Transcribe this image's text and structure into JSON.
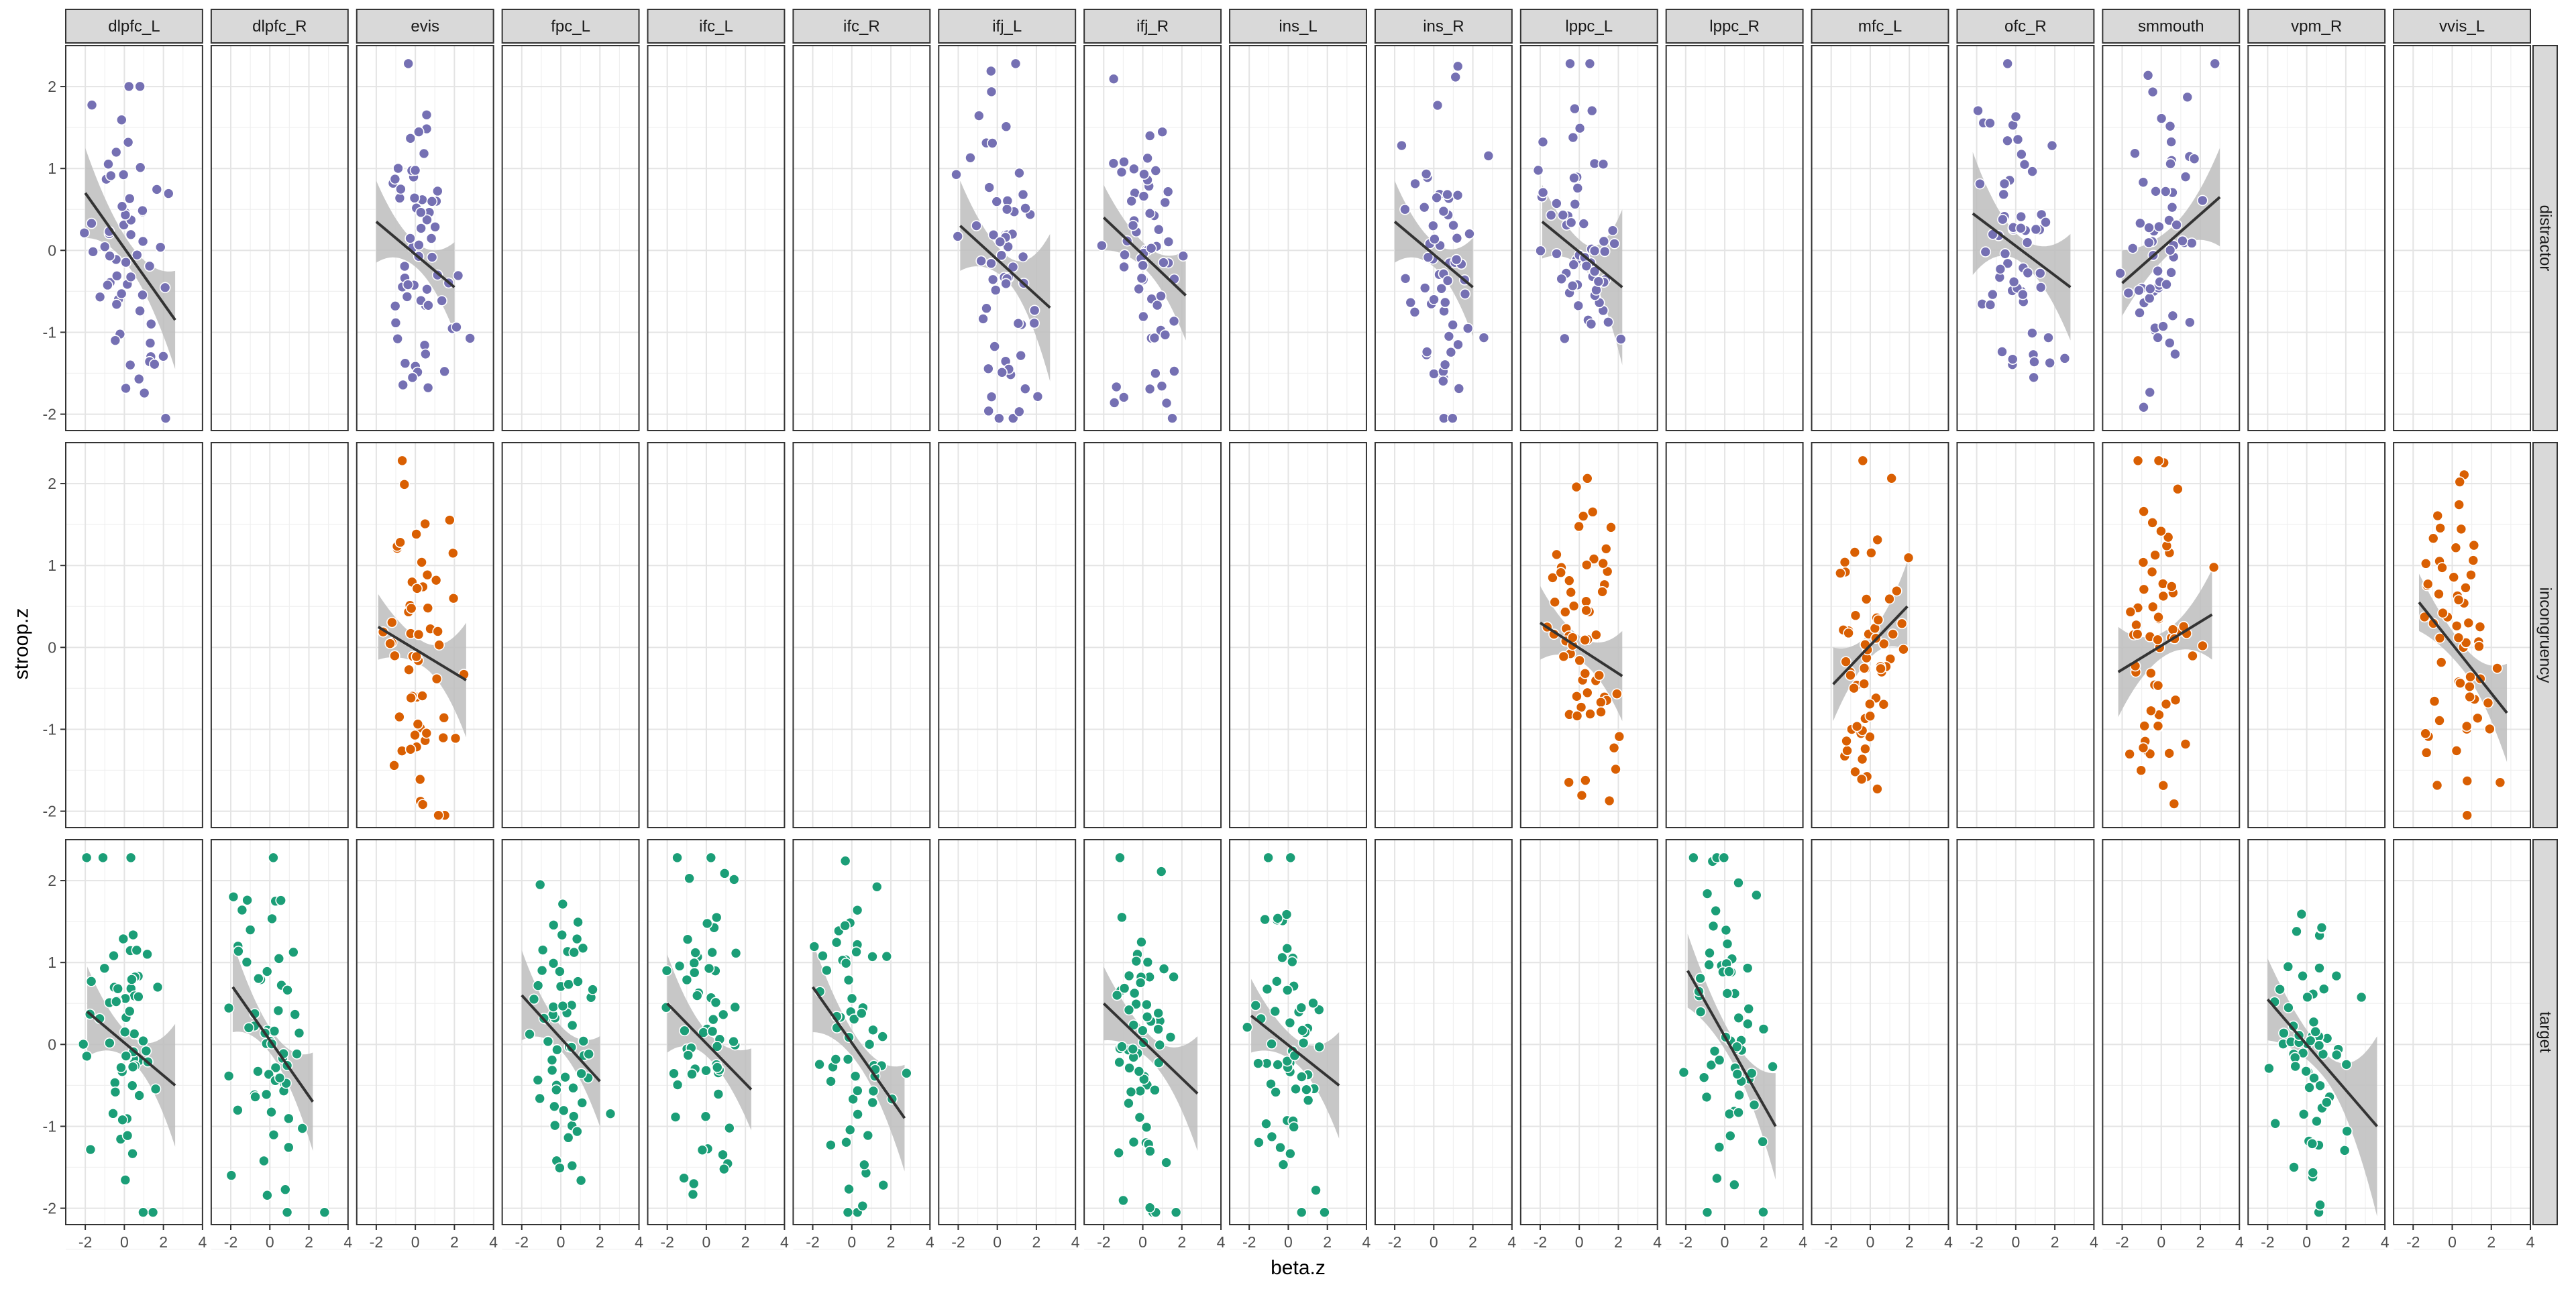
{
  "chart_data": {
    "type": "scatter",
    "facet_layout": "grid",
    "xlabel": "beta.z",
    "ylabel": "stroop.z",
    "xlim": [
      -3,
      4
    ],
    "ylim": [
      -2.2,
      2.5
    ],
    "x_ticks": [
      -2,
      0,
      2,
      4
    ],
    "y_ticks": [
      -2,
      -1,
      0,
      1,
      2
    ],
    "column_facets": [
      "dlpfc_L",
      "dlpfc_R",
      "evis",
      "fpc_L",
      "ifc_L",
      "ifc_R",
      "ifj_L",
      "ifj_R",
      "ins_L",
      "ins_R",
      "lppc_L",
      "lppc_R",
      "mfc_L",
      "ofc_R",
      "smmouth",
      "vpm_R",
      "vvis_L"
    ],
    "row_facets": [
      "distractor",
      "incongruency",
      "target"
    ],
    "grid": true,
    "legend": "none",
    "smoother": "linear fit with 95% confidence band",
    "colors": {
      "distractor": "#7570b3",
      "incongruency": "#d95f02",
      "target": "#1b9e77",
      "fit_line": "#333333",
      "band": "#bdbdbd",
      "strip_fill": "#d9d9d9"
    },
    "panels": [
      {
        "row": "distractor",
        "col": "dlpfc_L",
        "fit": {
          "x": [
            -2.0,
            2.6
          ],
          "y": [
            0.7,
            -0.85
          ]
        },
        "band_halfwidth": [
          0.55,
          0.15,
          0.6
        ],
        "seed": 11
      },
      {
        "row": "distractor",
        "col": "evis",
        "fit": {
          "x": [
            -2.0,
            2.0
          ],
          "y": [
            0.35,
            -0.45
          ]
        },
        "band_halfwidth": [
          0.5,
          0.15,
          0.55
        ],
        "seed": 12
      },
      {
        "row": "distractor",
        "col": "ifj_L",
        "fit": {
          "x": [
            -1.9,
            2.7
          ],
          "y": [
            0.3,
            -0.7
          ]
        },
        "band_halfwidth": [
          0.55,
          0.15,
          0.9
        ],
        "seed": 13
      },
      {
        "row": "distractor",
        "col": "ifj_R",
        "fit": {
          "x": [
            -2.0,
            2.2
          ],
          "y": [
            0.4,
            -0.55
          ]
        },
        "band_halfwidth": [
          0.4,
          0.15,
          0.55
        ],
        "seed": 14
      },
      {
        "row": "distractor",
        "col": "ins_R",
        "fit": {
          "x": [
            -2.0,
            2.0
          ],
          "y": [
            0.35,
            -0.45
          ]
        },
        "band_halfwidth": [
          0.5,
          0.15,
          0.6
        ],
        "seed": 15
      },
      {
        "row": "distractor",
        "col": "lppc_L",
        "fit": {
          "x": [
            -1.9,
            2.2
          ],
          "y": [
            0.35,
            -0.45
          ]
        },
        "band_halfwidth": [
          0.45,
          0.15,
          0.95
        ],
        "seed": 16
      },
      {
        "row": "distractor",
        "col": "ofc_R",
        "fit": {
          "x": [
            -2.2,
            2.8
          ],
          "y": [
            0.45,
            -0.45
          ]
        },
        "band_halfwidth": [
          0.75,
          0.15,
          0.65
        ],
        "seed": 17
      },
      {
        "row": "distractor",
        "col": "smmouth",
        "fit": {
          "x": [
            -2.0,
            3.0
          ],
          "y": [
            -0.4,
            0.65
          ]
        },
        "band_halfwidth": [
          0.4,
          0.15,
          0.6
        ],
        "seed": 18
      },
      {
        "row": "incongruency",
        "col": "evis",
        "fit": {
          "x": [
            -1.9,
            2.6
          ],
          "y": [
            0.25,
            -0.4
          ]
        },
        "band_halfwidth": [
          0.4,
          0.15,
          0.7
        ],
        "seed": 21
      },
      {
        "row": "incongruency",
        "col": "lppc_L",
        "fit": {
          "x": [
            -2.0,
            2.2
          ],
          "y": [
            0.3,
            -0.35
          ]
        },
        "band_halfwidth": [
          0.45,
          0.15,
          0.55
        ],
        "seed": 22
      },
      {
        "row": "incongruency",
        "col": "mfc_L",
        "fit": {
          "x": [
            -1.9,
            1.9
          ],
          "y": [
            -0.45,
            0.5
          ]
        },
        "band_halfwidth": [
          0.45,
          0.15,
          0.55
        ],
        "seed": 23
      },
      {
        "row": "incongruency",
        "col": "smmouth",
        "fit": {
          "x": [
            -2.2,
            2.6
          ],
          "y": [
            -0.3,
            0.4
          ]
        },
        "band_halfwidth": [
          0.55,
          0.15,
          0.55
        ],
        "seed": 24
      },
      {
        "row": "incongruency",
        "col": "vvis_L",
        "fit": {
          "x": [
            -1.7,
            2.8
          ],
          "y": [
            0.55,
            -0.8
          ]
        },
        "band_halfwidth": [
          0.35,
          0.15,
          0.6
        ],
        "seed": 25
      },
      {
        "row": "target",
        "col": "dlpfc_L",
        "fit": {
          "x": [
            -1.9,
            2.6
          ],
          "y": [
            0.4,
            -0.5
          ]
        },
        "band_halfwidth": [
          0.55,
          0.15,
          0.75
        ],
        "seed": 31
      },
      {
        "row": "target",
        "col": "dlpfc_R",
        "fit": {
          "x": [
            -1.9,
            2.2
          ],
          "y": [
            0.7,
            -0.7
          ]
        },
        "band_halfwidth": [
          0.55,
          0.15,
          0.6
        ],
        "seed": 32
      },
      {
        "row": "target",
        "col": "fpc_L",
        "fit": {
          "x": [
            -2.0,
            2.0
          ],
          "y": [
            0.6,
            -0.45
          ]
        },
        "band_halfwidth": [
          0.55,
          0.15,
          0.55
        ],
        "seed": 33
      },
      {
        "row": "target",
        "col": "ifc_L",
        "fit": {
          "x": [
            -2.0,
            2.3
          ],
          "y": [
            0.5,
            -0.55
          ]
        },
        "band_halfwidth": [
          0.6,
          0.15,
          0.5
        ],
        "seed": 34
      },
      {
        "row": "target",
        "col": "ifc_R",
        "fit": {
          "x": [
            -2.0,
            2.7
          ],
          "y": [
            0.7,
            -0.9
          ]
        },
        "band_halfwidth": [
          0.55,
          0.15,
          0.65
        ],
        "seed": 35
      },
      {
        "row": "target",
        "col": "ifj_R",
        "fit": {
          "x": [
            -2.0,
            2.8
          ],
          "y": [
            0.5,
            -0.6
          ]
        },
        "band_halfwidth": [
          0.45,
          0.15,
          0.7
        ],
        "seed": 36
      },
      {
        "row": "target",
        "col": "ins_L",
        "fit": {
          "x": [
            -1.9,
            2.6
          ],
          "y": [
            0.35,
            -0.5
          ]
        },
        "band_halfwidth": [
          0.45,
          0.15,
          0.65
        ],
        "seed": 37
      },
      {
        "row": "target",
        "col": "lppc_R",
        "fit": {
          "x": [
            -1.9,
            2.6
          ],
          "y": [
            0.9,
            -1.0
          ]
        },
        "band_halfwidth": [
          0.45,
          0.15,
          0.65
        ],
        "seed": 38
      },
      {
        "row": "target",
        "col": "vpm_R",
        "fit": {
          "x": [
            -2.0,
            3.6
          ],
          "y": [
            0.55,
            -1.0
          ]
        },
        "band_halfwidth": [
          0.5,
          0.15,
          1.1
        ],
        "seed": 39
      }
    ]
  }
}
